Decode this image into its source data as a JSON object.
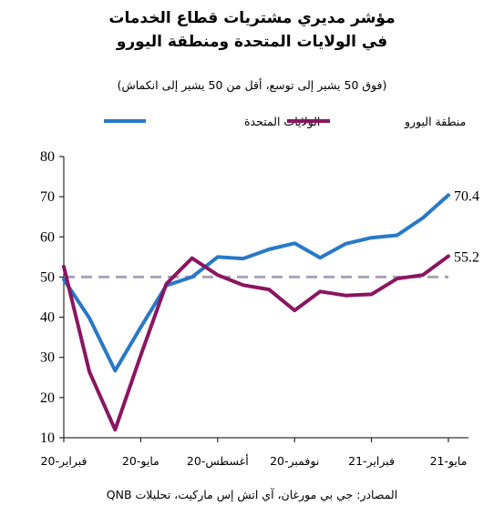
{
  "chart_data": {
    "type": "line",
    "title_line1": "مؤشر مديري مشتريات قطاع الخدمات",
    "title_line2": "في الولايات المتحدة ومنطقة اليورو",
    "subtitle": "(فوق 50 يشير إلى توسع، أقل من 50 يشير إلى انكماش)",
    "ylim": [
      10,
      80
    ],
    "yticks": [
      "10",
      "20",
      "30",
      "40",
      "50",
      "60",
      "70",
      "80"
    ],
    "x_tick_labels": [
      "فبراير-20",
      "مايو-20",
      "أغسطس-20",
      "نوفمبر-20",
      "فبراير-21",
      "مايو-21"
    ],
    "reference_line": {
      "value": 50,
      "color": "#a9a3b8",
      "style": "dashed"
    },
    "grid": false,
    "legend_position": "top",
    "series": [
      {
        "name": "الولايات المتحدة",
        "color": "#2878c8",
        "end_label": "70.4",
        "x": [
          "Feb-20",
          "Mar-20",
          "Apr-20",
          "May-20",
          "Jun-20",
          "Jul-20",
          "Aug-20",
          "Sep-20",
          "Oct-20",
          "Nov-20",
          "Dec-20",
          "Jan-21",
          "Feb-21",
          "Mar-21",
          "Apr-21",
          "May-21"
        ],
        "values": [
          49.4,
          39.8,
          26.7,
          37.5,
          47.9,
          50.0,
          55.0,
          54.6,
          56.9,
          58.4,
          54.8,
          58.3,
          59.8,
          60.4,
          64.7,
          70.4
        ]
      },
      {
        "name": "منطقة اليورو",
        "color": "#8a1560",
        "end_label": "55.2",
        "x": [
          "Feb-20",
          "Mar-20",
          "Apr-20",
          "May-20",
          "Jun-20",
          "Jul-20",
          "Aug-20",
          "Sep-20",
          "Oct-20",
          "Nov-20",
          "Dec-20",
          "Jan-21",
          "Feb-21",
          "Mar-21",
          "Apr-21",
          "May-21"
        ],
        "values": [
          52.6,
          26.4,
          12.0,
          30.5,
          48.3,
          54.7,
          50.5,
          48.0,
          46.9,
          41.7,
          46.4,
          45.4,
          45.7,
          49.6,
          50.5,
          55.2
        ]
      }
    ]
  },
  "source": "المصادر: جي بي مورغان، آي اتش إس ماركيت، تحليلات QNB"
}
